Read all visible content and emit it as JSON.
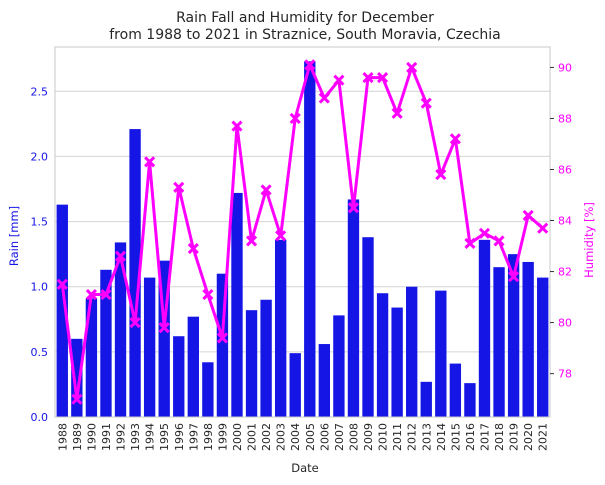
{
  "chart_data": {
    "type": "bar",
    "title_lines": [
      "Rain Fall and Humidity for December",
      "from 1988 to 2021 in Straznice, South Moravia, Czechia"
    ],
    "xlabel": "Date",
    "ylabel_left": "Rain [mm]",
    "ylabel_right": "Humidity [%]",
    "categories": [
      "1988",
      "1989",
      "1990",
      "1991",
      "1992",
      "1993",
      "1994",
      "1995",
      "1996",
      "1997",
      "1998",
      "1999",
      "2000",
      "2001",
      "2002",
      "2003",
      "2004",
      "2005",
      "2006",
      "2007",
      "2008",
      "2009",
      "2010",
      "2011",
      "2012",
      "2013",
      "2014",
      "2015",
      "2016",
      "2017",
      "2018",
      "2019",
      "2020",
      "2021"
    ],
    "rain": {
      "axis": "left",
      "color": "#1515e6",
      "ylim": [
        0,
        2.84
      ],
      "ticks": [
        "0.0",
        "0.5",
        "1.0",
        "1.5",
        "2.0",
        "2.5"
      ],
      "tick_values": [
        0,
        0.5,
        1.0,
        1.5,
        2.0,
        2.5
      ],
      "values": [
        1.63,
        0.6,
        0.91,
        1.13,
        1.34,
        2.21,
        1.07,
        1.2,
        0.62,
        0.77,
        0.42,
        1.1,
        1.72,
        0.82,
        0.9,
        1.36,
        0.49,
        2.73,
        0.56,
        0.78,
        1.67,
        1.38,
        0.95,
        0.84,
        1.0,
        0.27,
        0.97,
        0.41,
        0.26,
        1.36,
        1.15,
        1.25,
        1.19,
        1.07
      ]
    },
    "humidity": {
      "axis": "right",
      "color": "#ff00ff",
      "marker": "x",
      "ylim": [
        76.3,
        90.8
      ],
      "ticks": [
        "78",
        "80",
        "82",
        "84",
        "86",
        "88",
        "90"
      ],
      "tick_values": [
        78,
        80,
        82,
        84,
        86,
        88,
        90
      ],
      "values": [
        81.5,
        77.0,
        81.1,
        81.1,
        82.6,
        80.0,
        86.3,
        79.8,
        85.3,
        82.9,
        81.1,
        79.4,
        87.7,
        83.2,
        85.2,
        83.4,
        88.0,
        90.1,
        88.8,
        89.5,
        84.5,
        89.6,
        89.6,
        88.2,
        90.0,
        88.6,
        85.8,
        87.2,
        83.1,
        83.5,
        83.2,
        81.8,
        84.2,
        83.7
      ]
    },
    "grid": "horizontal"
  }
}
